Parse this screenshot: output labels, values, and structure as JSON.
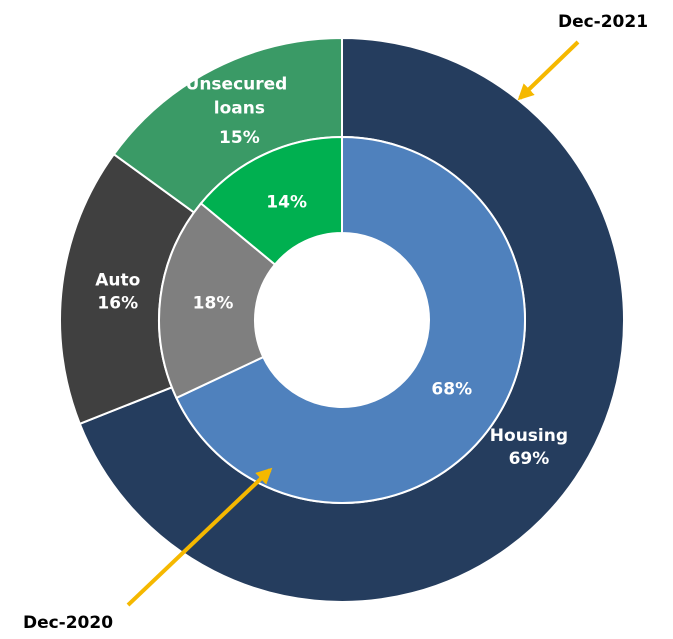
{
  "chart_data": {
    "type": "donut",
    "categories": [
      "Housing",
      "Auto",
      "Unsecured loans"
    ],
    "series": [
      {
        "name": "Dec-2021",
        "values": [
          69,
          16,
          15
        ],
        "value_labels": [
          "69%",
          "16%",
          "15%"
        ],
        "colors": [
          "#253d5e",
          "#404040",
          "#3a9a66"
        ]
      },
      {
        "name": "Dec-2020",
        "values": [
          68,
          18,
          14
        ],
        "value_labels": [
          "68%",
          "18%",
          "14%"
        ],
        "colors": [
          "#4f81bd",
          "#7f7f7f",
          "#00b050"
        ]
      }
    ]
  }
}
